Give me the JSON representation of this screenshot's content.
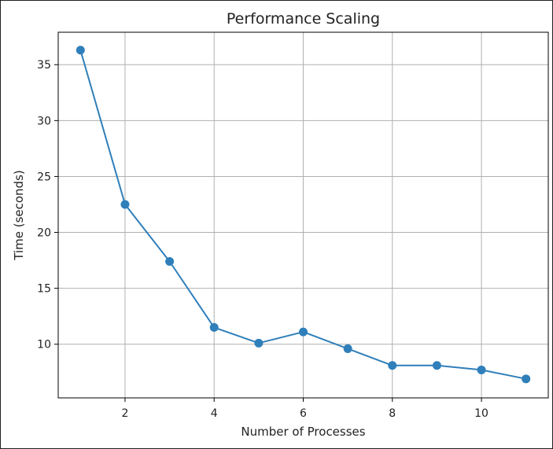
{
  "chart_data": {
    "type": "line",
    "title": "Performance Scaling",
    "xlabel": "Number of Processes",
    "ylabel": "Time (seconds)",
    "x": [
      1,
      2,
      3,
      4,
      5,
      6,
      7,
      8,
      9,
      10,
      11
    ],
    "series": [
      {
        "values": [
          36.3,
          22.5,
          17.4,
          11.5,
          10.1,
          11.1,
          9.6,
          8.1,
          8.1,
          7.7,
          6.9
        ]
      }
    ],
    "xlim": [
      0.5,
      11.5
    ],
    "ylim": [
      5.2,
      37.9
    ],
    "xticks": [
      2,
      4,
      6,
      8,
      10
    ],
    "yticks": [
      10,
      15,
      20,
      25,
      30,
      35
    ],
    "grid": true,
    "legend": "none",
    "colors": {
      "line": "#2f7fba",
      "marker": "#2f7fba",
      "grid": "#b0b0b0",
      "axis": "#000000",
      "text": "#222222"
    }
  }
}
